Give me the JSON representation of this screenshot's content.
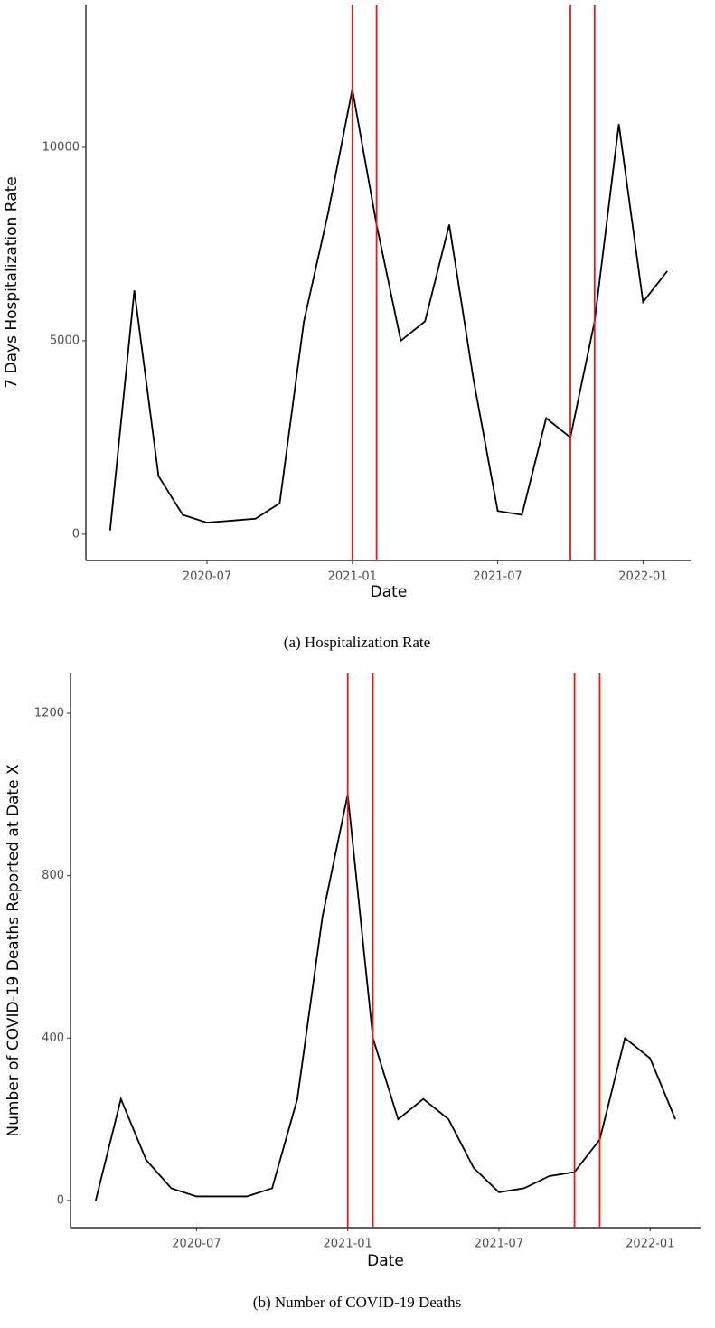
{
  "chart_data": [
    {
      "type": "line",
      "x_label": "Date",
      "y_label": "7 Days Hospitalization Rate",
      "caption": "(a) Hospitalization Rate",
      "x": [
        "2020-03",
        "2020-04",
        "2020-05",
        "2020-06",
        "2020-07",
        "2020-08",
        "2020-09",
        "2020-10",
        "2020-11",
        "2020-12",
        "2021-01",
        "2021-02",
        "2021-03",
        "2021-04",
        "2021-05",
        "2021-06",
        "2021-07",
        "2021-08",
        "2021-09",
        "2021-10",
        "2021-11",
        "2021-12",
        "2022-01",
        "2022-02"
      ],
      "values": [
        100,
        6300,
        1500,
        500,
        300,
        350,
        400,
        800,
        5500,
        8300,
        11500,
        8000,
        5000,
        5500,
        8000,
        4000,
        600,
        500,
        3000,
        2500,
        5500,
        10600,
        6000,
        6800
      ],
      "color": "#000000",
      "xlim": [
        "2020-02",
        "2022-03"
      ],
      "xticks": [
        "2020-07",
        "2021-01",
        "2021-07",
        "2022-01"
      ],
      "ylim": [
        -680,
        13690
      ],
      "yticks": [
        0,
        5000,
        10000
      ],
      "vlines": [
        "2021-01",
        "2021-02",
        "2021-10",
        "2021-11"
      ],
      "vline_color": "#e41a1c"
    },
    {
      "type": "line",
      "x_label": "Date",
      "y_label": "Number of COVID-19 Deaths Reported at Date X",
      "caption": "(b) Number of COVID-19 Deaths",
      "x": [
        "2020-03",
        "2020-04",
        "2020-05",
        "2020-06",
        "2020-07",
        "2020-08",
        "2020-09",
        "2020-10",
        "2020-11",
        "2020-12",
        "2021-01",
        "2021-02",
        "2021-03",
        "2021-04",
        "2021-05",
        "2021-06",
        "2021-07",
        "2021-08",
        "2021-09",
        "2021-10",
        "2021-11",
        "2021-12",
        "2022-01",
        "2022-02"
      ],
      "values": [
        0,
        250,
        100,
        30,
        10,
        10,
        10,
        30,
        250,
        700,
        1000,
        400,
        200,
        250,
        200,
        80,
        20,
        30,
        60,
        70,
        150,
        400,
        350,
        200
      ],
      "color": "#000000",
      "xlim": [
        "2020-02",
        "2022-03"
      ],
      "xticks": [
        "2020-07",
        "2021-01",
        "2021-07",
        "2022-01"
      ],
      "ylim": [
        -67,
        1298
      ],
      "yticks": [
        0,
        400,
        800,
        1200
      ],
      "vlines": [
        "2021-01",
        "2021-02",
        "2021-10",
        "2021-11"
      ],
      "vline_color": "#e41a1c"
    }
  ]
}
